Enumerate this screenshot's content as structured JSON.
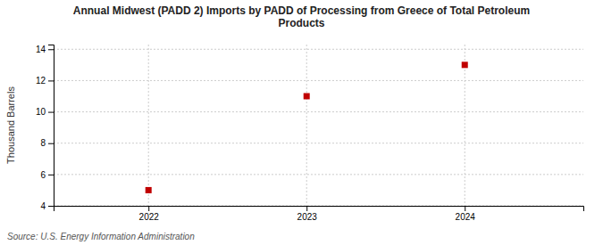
{
  "chart_data": {
    "type": "scatter",
    "title": "Annual Midwest (PADD 2) Imports by PADD of Processing from Greece of Total Petroleum\nProducts",
    "y_label": "Thousand Barrels",
    "source": "Source: U.S. Energy Information Administration",
    "x": [
      2022,
      2023,
      2024
    ],
    "values": [
      5,
      11,
      13
    ],
    "xlim": [
      2021.4,
      2024.75
    ],
    "ylim": [
      4,
      14.3
    ],
    "xticks": [
      2022,
      2023,
      2024
    ],
    "yticks": [
      4,
      6,
      8,
      10,
      12,
      14
    ],
    "color": "#c00000",
    "marker": "square",
    "grid": true
  }
}
